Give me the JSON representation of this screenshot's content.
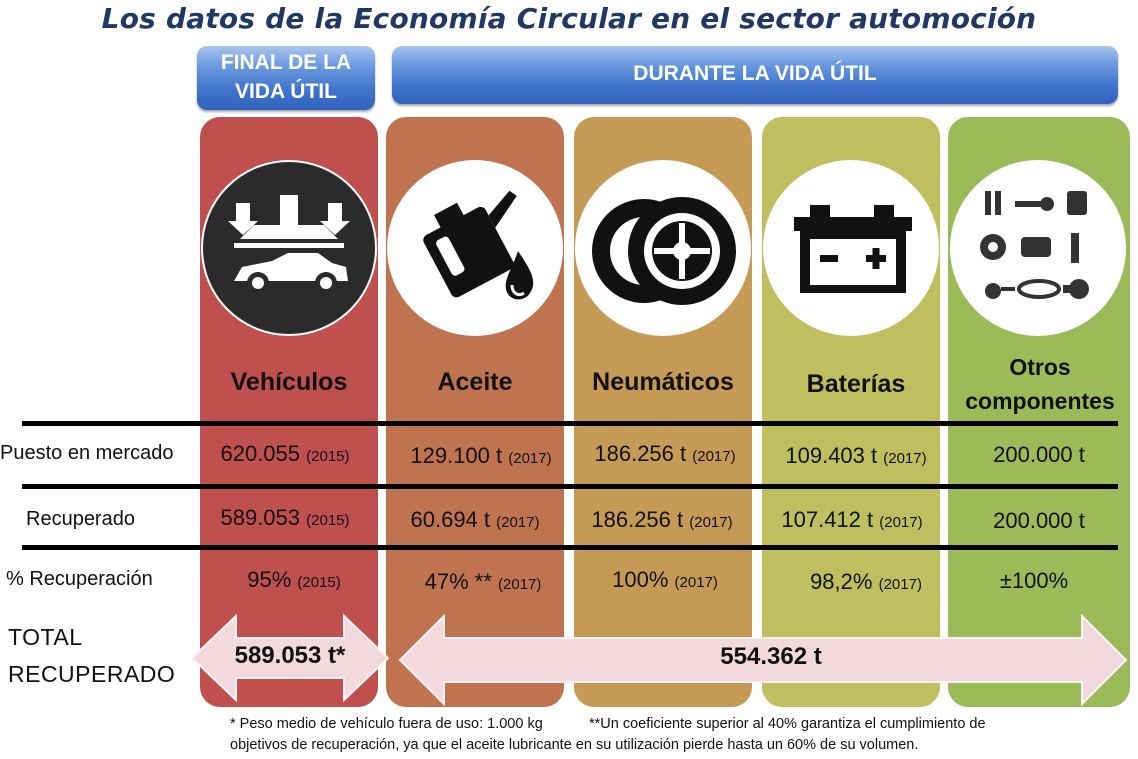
{
  "title": "Los datos de la Economía Circular en el sector automoción",
  "banners": {
    "end_of_life": [
      "FINAL DE LA",
      "VIDA ÚTIL"
    ],
    "during_life": "DURANTE LA VIDA ÚTIL"
  },
  "columns": [
    {
      "name": "Vehículos",
      "color": "#c0504d",
      "icon": "car-press-icon"
    },
    {
      "name": "Aceite",
      "color": "#c0734f",
      "icon": "oil-can-icon"
    },
    {
      "name": "Neumáticos",
      "color": "#c49a55",
      "icon": "tires-icon"
    },
    {
      "name": "Baterías",
      "color": "#bfbf5f",
      "icon": "battery-icon"
    },
    {
      "name": "Otros componentes",
      "color": "#9bbb59",
      "icon": "car-parts-icon"
    }
  ],
  "rows": [
    {
      "label": "Puesto en mercado",
      "cells": [
        {
          "value": "620.055",
          "year": "(2015)"
        },
        {
          "value": "129.100 t",
          "year": "(2017)"
        },
        {
          "value": "186.256 t",
          "year": "(2017)"
        },
        {
          "value": "109.403 t",
          "year": "(2017)"
        },
        {
          "value": "200.000 t",
          "year": ""
        }
      ]
    },
    {
      "label": "Recuperado",
      "cells": [
        {
          "value": "589.053",
          "year": "(2015)"
        },
        {
          "value": "60.694 t",
          "year": "(2017)"
        },
        {
          "value": "186.256 t",
          "year": "(2017)"
        },
        {
          "value": "107.412 t",
          "year": "(2017)"
        },
        {
          "value": "200.000 t",
          "year": ""
        }
      ]
    },
    {
      "label": "% Recuperación",
      "cells": [
        {
          "value": "95%",
          "year": "(2015)"
        },
        {
          "value": "47% **",
          "year": "(2017)"
        },
        {
          "value": "100%",
          "year": "(2017)"
        },
        {
          "value": "98,2%",
          "year": "(2017)"
        },
        {
          "value": "±100%",
          "year": ""
        }
      ]
    }
  ],
  "total": {
    "label": [
      "TOTAL",
      "RECUPERADO"
    ],
    "end_of_life_value": "589.053 t*",
    "during_life_value": "554.362 t"
  },
  "footnotes": {
    "note1": "* Peso medio de vehículo fuera de uso: 1.000 kg",
    "note2_line1": "**Un coeficiente superior al 40% garantiza el cumplimiento de",
    "note2_line2": "objetivos de recuperación, ya que el aceite lubricante en su utilización pierde hasta un 60% de su volumen."
  },
  "colors": {
    "title": "#1f3864",
    "banner": "#3f74cc",
    "arrow_fill": "#f2d9dd"
  }
}
